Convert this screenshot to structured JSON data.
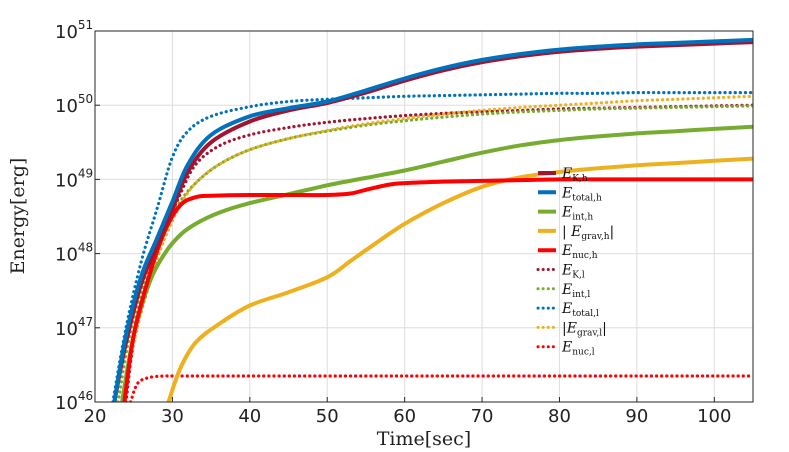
{
  "chart_data": {
    "type": "line",
    "title": "",
    "xlabel": "Time[sec]",
    "ylabel": "Energy[erg]",
    "xlim": [
      20,
      105
    ],
    "ylim_log10": [
      46,
      51
    ],
    "yscale": "log",
    "grid": true,
    "x_ticks": [
      20,
      30,
      40,
      50,
      60,
      70,
      80,
      90,
      100
    ],
    "x_tick_labels": [
      "20",
      "30",
      "40",
      "50",
      "60",
      "70",
      "80",
      "90",
      "100"
    ],
    "y_ticks_log10": [
      46,
      47,
      48,
      49,
      50,
      51
    ],
    "y_tick_base": "10",
    "y_tick_exponents": [
      "46",
      "47",
      "48",
      "49",
      "50",
      "51"
    ],
    "legend_position": "center-right",
    "series": [
      {
        "name": "E_K,h",
        "label_main": "E",
        "label_sub": "K,h",
        "color": "#a2142f",
        "style": "solid",
        "x": [
          22.5,
          24,
          26,
          28,
          30,
          32,
          35,
          40,
          45,
          50,
          55,
          60,
          65,
          70,
          75,
          80,
          85,
          90,
          95,
          100,
          105
        ],
        "log10_values": [
          46.0,
          46.8,
          47.6,
          48.1,
          48.6,
          49.1,
          49.5,
          49.78,
          49.93,
          50.03,
          50.17,
          50.33,
          50.47,
          50.58,
          50.66,
          50.72,
          50.76,
          50.79,
          50.81,
          50.83,
          50.85
        ]
      },
      {
        "name": "E_total,h",
        "label_main": "E",
        "label_sub": "total,h",
        "color": "#0072bd",
        "style": "solid",
        "x": [
          22.5,
          24,
          26,
          28,
          30,
          32,
          35,
          40,
          45,
          50,
          55,
          60,
          65,
          70,
          75,
          80,
          85,
          90,
          95,
          100,
          105
        ],
        "log10_values": [
          46.0,
          46.9,
          47.7,
          48.2,
          48.7,
          49.2,
          49.6,
          49.85,
          49.96,
          50.05,
          50.2,
          50.36,
          50.5,
          50.61,
          50.69,
          50.75,
          50.79,
          50.82,
          50.84,
          50.86,
          50.88
        ]
      },
      {
        "name": "E_int,h",
        "label_main": "E",
        "label_sub": "int,h",
        "color": "#77ac30",
        "style": "solid",
        "x": [
          23.5,
          25,
          27,
          29,
          31,
          33,
          36,
          40,
          45,
          50,
          55,
          60,
          65,
          70,
          75,
          80,
          85,
          90,
          95,
          100,
          105
        ],
        "log10_values": [
          46.0,
          46.9,
          47.6,
          48.0,
          48.25,
          48.4,
          48.55,
          48.68,
          48.8,
          48.92,
          49.02,
          49.12,
          49.24,
          49.36,
          49.46,
          49.53,
          49.58,
          49.62,
          49.65,
          49.68,
          49.71
        ]
      },
      {
        "name": "|E_grav,h|",
        "label_main": "| E",
        "label_sub": "grav,h",
        "label_suffix": "|",
        "color": "#edb120",
        "style": "solid",
        "x": [
          29.5,
          31,
          33,
          36,
          40,
          45,
          50,
          53,
          56,
          60,
          65,
          70,
          75,
          80,
          85,
          90,
          95,
          100,
          105
        ],
        "log10_values": [
          46.0,
          46.45,
          46.8,
          47.05,
          47.3,
          47.48,
          47.68,
          47.9,
          48.12,
          48.4,
          48.68,
          48.9,
          49.03,
          49.1,
          49.15,
          49.19,
          49.22,
          49.25,
          49.28
        ]
      },
      {
        "name": "E_nuc,h",
        "label_main": "E",
        "label_sub": "nuc,h",
        "color": "#ff0000",
        "style": "solid",
        "x": [
          23.8,
          25,
          27,
          29,
          31,
          33,
          35,
          40,
          45,
          50,
          53,
          55,
          58,
          60,
          65,
          70,
          75,
          80,
          85,
          90,
          95,
          100,
          105
        ],
        "log10_values": [
          46.0,
          46.9,
          47.7,
          48.3,
          48.65,
          48.76,
          48.78,
          48.79,
          48.79,
          48.79,
          48.81,
          48.86,
          48.93,
          48.95,
          48.97,
          48.98,
          48.99,
          49.0,
          49.0,
          49.0,
          49.0,
          49.0,
          49.0
        ]
      },
      {
        "name": "E_K,l",
        "label_main": "E",
        "label_sub": "K,l",
        "color": "#a2142f",
        "style": "dotted",
        "x": [
          24,
          25,
          27,
          29,
          31,
          33,
          36,
          40,
          45,
          50,
          55,
          60,
          65,
          70,
          75,
          80,
          85,
          90,
          95,
          100,
          105
        ],
        "log10_values": [
          46.0,
          46.8,
          47.6,
          48.3,
          48.8,
          49.2,
          49.45,
          49.6,
          49.7,
          49.77,
          49.82,
          49.86,
          49.89,
          49.91,
          49.93,
          49.95,
          49.96,
          49.97,
          49.98,
          49.99,
          50.0
        ]
      },
      {
        "name": "E_int,l",
        "label_main": "E",
        "label_sub": "int,l",
        "color": "#77ac30",
        "style": "dotted",
        "x": [
          23,
          24.5,
          27,
          29,
          31,
          33,
          36,
          40,
          45,
          50,
          55,
          60,
          65,
          70,
          75,
          80,
          85,
          90,
          95,
          100,
          105
        ],
        "log10_values": [
          46.0,
          46.9,
          47.8,
          48.3,
          48.7,
          48.95,
          49.2,
          49.4,
          49.55,
          49.65,
          49.73,
          49.79,
          49.84,
          49.88,
          49.91,
          49.93,
          49.95,
          49.96,
          49.97,
          49.98,
          49.99
        ]
      },
      {
        "name": "E_total,l",
        "label_main": "E",
        "label_sub": "total,l",
        "color": "#0072bd",
        "style": "dotted",
        "x": [
          22.3,
          24,
          26,
          28,
          30,
          32,
          35,
          40,
          45,
          50,
          55,
          60,
          65,
          70,
          75,
          80,
          85,
          90,
          95,
          100,
          105
        ],
        "log10_values": [
          46.0,
          47.0,
          47.9,
          48.6,
          49.3,
          49.65,
          49.85,
          49.98,
          50.05,
          50.08,
          50.1,
          50.12,
          50.13,
          50.14,
          50.15,
          50.16,
          50.16,
          50.17,
          50.17,
          50.17,
          50.17
        ]
      },
      {
        "name": "|E_grav,l|",
        "label_main": "|E",
        "label_sub": "grav,l",
        "label_suffix": "|",
        "color": "#edb120",
        "style": "dotted",
        "x": [
          23.5,
          25,
          27,
          29,
          31,
          33,
          36,
          40,
          45,
          50,
          55,
          60,
          65,
          70,
          75,
          80,
          85,
          90,
          95,
          100,
          105
        ],
        "log10_values": [
          46.0,
          46.8,
          47.6,
          48.2,
          48.65,
          48.95,
          49.2,
          49.4,
          49.55,
          49.66,
          49.75,
          49.82,
          49.88,
          49.93,
          49.97,
          50.0,
          50.03,
          50.06,
          50.08,
          50.1,
          50.12
        ]
      },
      {
        "name": "E_nuc,l",
        "label_main": "E",
        "label_sub": "nuc,l",
        "color": "#ff0000",
        "style": "dotted",
        "x": [
          24.6,
          25.5,
          27,
          29,
          31,
          35,
          40,
          50,
          60,
          70,
          80,
          90,
          100,
          105
        ],
        "log10_values": [
          46.0,
          46.25,
          46.33,
          46.35,
          46.35,
          46.35,
          46.35,
          46.35,
          46.35,
          46.35,
          46.35,
          46.35,
          46.35,
          46.35
        ]
      }
    ]
  }
}
